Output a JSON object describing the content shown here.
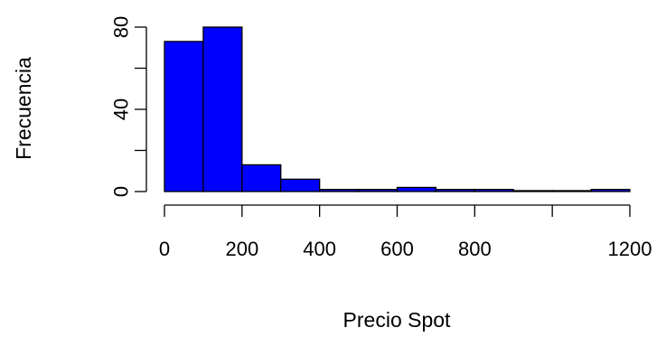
{
  "chart_data": {
    "type": "bar",
    "subtype": "histogram",
    "bins": [
      {
        "start": 0,
        "end": 100,
        "value": 73
      },
      {
        "start": 100,
        "end": 200,
        "value": 80
      },
      {
        "start": 200,
        "end": 300,
        "value": 13
      },
      {
        "start": 300,
        "end": 400,
        "value": 6
      },
      {
        "start": 400,
        "end": 500,
        "value": 1
      },
      {
        "start": 500,
        "end": 600,
        "value": 1
      },
      {
        "start": 600,
        "end": 700,
        "value": 2
      },
      {
        "start": 700,
        "end": 800,
        "value": 1
      },
      {
        "start": 800,
        "end": 900,
        "value": 1
      },
      {
        "start": 900,
        "end": 1000,
        "value": 0
      },
      {
        "start": 1000,
        "end": 1100,
        "value": 0
      },
      {
        "start": 1100,
        "end": 1200,
        "value": 1
      }
    ],
    "xlabel": "Precio Spot",
    "ylabel": "Frecuencia",
    "xlim": [
      0,
      1200
    ],
    "ylim": [
      0,
      80
    ],
    "x_ticks": [
      0,
      200,
      400,
      600,
      800,
      1000,
      1200
    ],
    "x_tick_labels": [
      "0",
      "200",
      "400",
      "600",
      "800",
      "",
      "1200"
    ],
    "y_ticks": [
      0,
      20,
      40,
      60,
      80
    ],
    "y_tick_labels": [
      "0",
      "",
      "40",
      "",
      "80"
    ],
    "bar_color": "#0000ff",
    "grid": false
  }
}
